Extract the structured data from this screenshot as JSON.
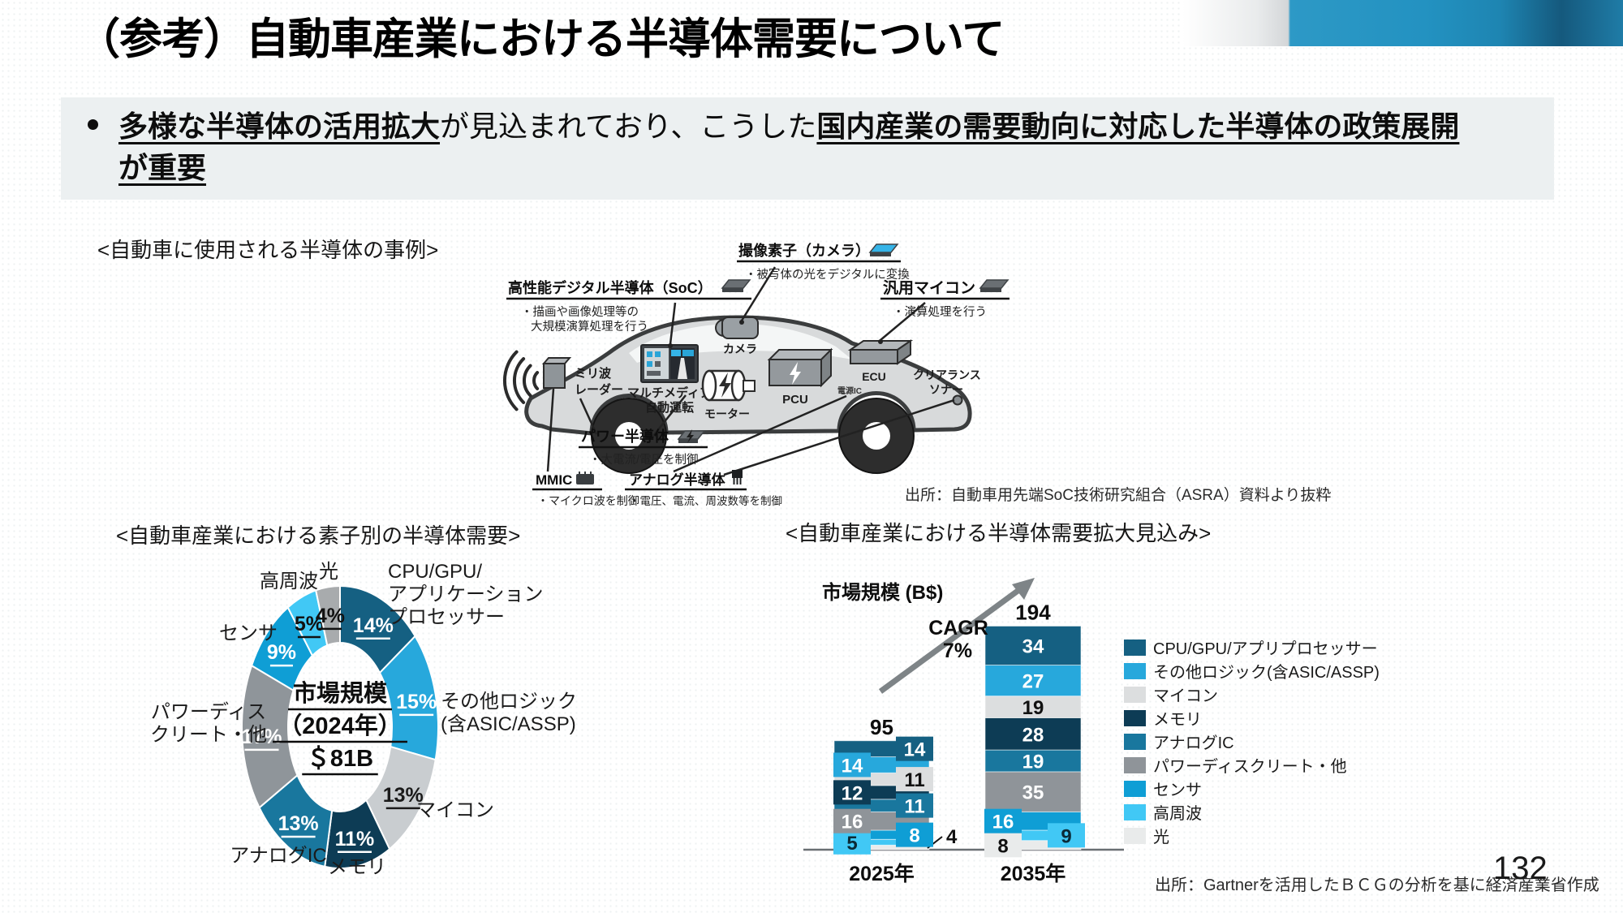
{
  "page": {
    "title": "（参考）自動車産業における半導体需要について",
    "page_number": "132"
  },
  "key_message": {
    "emph1": "多様な半導体の活用拡大",
    "normal1": "が見込まれており、こうした",
    "emph2": "国内産業の需要動向に対応した半導体の政策展開",
    "emph3": "が重要"
  },
  "sections": {
    "car_example": "<自動車に使用される半導体の事例>",
    "donut": "<自動車産業における素子別の半導体需要>",
    "bar": "<自動車産業における半導体需要拡大見込み>"
  },
  "car_diagram": {
    "callouts": {
      "soc": {
        "title": "高性能デジタル半導体（SoC）",
        "desc1": "・描画や画像処理等の",
        "desc2": "大規模演算処理を行う"
      },
      "image_sensor": {
        "title": "撮像素子（カメラ）",
        "desc": "・被写体の光をデジタルに変換"
      },
      "mcu": {
        "title": "汎用マイコン",
        "desc": "・演算処理を行う"
      },
      "power": {
        "title": "パワー半導体",
        "desc": "・大電流/電圧を制御"
      },
      "mmic": {
        "title": "MMIC",
        "desc": "・マイクロ波を制御"
      },
      "analog": {
        "title": "アナログ半導体",
        "desc": "・電圧、電流、周波数等を制御"
      }
    },
    "parts": {
      "radar1": "ミリ波",
      "radar2": "レーダー",
      "multimedia1": "マルチメディア",
      "multimedia2": "自動運転",
      "camera": "カメラ",
      "motor": "モーター",
      "pcu": "PCU",
      "ecu": "ECU",
      "power_ic": "電源IC",
      "sonar1": "クリアランス",
      "sonar2": "ソナー"
    },
    "source": "出所：自動車用先端SoC技術研究組合（ASRA）資料より抜粋"
  },
  "chart_data": [
    {
      "type": "pie",
      "subtype": "donut",
      "title": "<自動車産業における素子別の半導体需要>",
      "center_label": [
        "市場規模",
        "（2024年）",
        "＄81B"
      ],
      "slices": [
        {
          "name_lines": [
            "CPU/GPU/",
            "アプリケーション",
            "プロセッサー"
          ],
          "value_pct": 14,
          "color": "#156082",
          "pct_color": "#ffffff"
        },
        {
          "name_lines": [
            "その他ロジック",
            "(含ASIC/ASSP)"
          ],
          "value_pct": 15,
          "color": "#27a8dc",
          "pct_color": "#ffffff"
        },
        {
          "name_lines": [
            "マイコン"
          ],
          "value_pct": 13,
          "color": "#c9cdd0",
          "pct_color": "#1a1a1a"
        },
        {
          "name_lines": [
            "メモリ"
          ],
          "value_pct": 11,
          "color": "#0d3c55",
          "pct_color": "#ffffff"
        },
        {
          "name_lines": [
            "アナログIC"
          ],
          "value_pct": 13,
          "color": "#19779e",
          "pct_color": "#ffffff"
        },
        {
          "name_lines": [
            "パワーディス",
            "クリート・他"
          ],
          "value_pct": 17,
          "color": "#8f959a",
          "pct_color": "#ffffff"
        },
        {
          "name_lines": [
            "センサ"
          ],
          "value_pct": 9,
          "color": "#0f9ed5",
          "pct_color": "#ffffff"
        },
        {
          "name_lines": [
            "高周波"
          ],
          "value_pct": 5,
          "color": "#41c8f5",
          "pct_color": "#111111"
        },
        {
          "name_lines": [
            "光"
          ],
          "value_pct": 4,
          "color": "#a8abad",
          "pct_color": "#111111"
        }
      ]
    },
    {
      "type": "bar",
      "stacked": true,
      "title": "市場規模 (B$)",
      "cagr_label": "CAGR",
      "cagr_value": "7%",
      "categories": [
        "2025年",
        "2035年"
      ],
      "totals": [
        95,
        194
      ],
      "series": [
        {
          "name": "光",
          "color": "#e9ebeb",
          "values": [
            4,
            8
          ],
          "label_color": "#111111"
        },
        {
          "name": "高周波",
          "color": "#41c8f5",
          "values": [
            5,
            9
          ],
          "label_color": "#0b2a36"
        },
        {
          "name": "センサ",
          "color": "#0f9ed5",
          "values": [
            8,
            16
          ],
          "label_color": "#ffffff"
        },
        {
          "name": "パワーディスクリート・他",
          "color": "#8f9499",
          "values": [
            16,
            35
          ],
          "label_color": "#ffffff"
        },
        {
          "name": "アナログIC",
          "color": "#19779e",
          "values": [
            11,
            19
          ],
          "label_color": "#ffffff"
        },
        {
          "name": "メモリ",
          "color": "#0d3c55",
          "values": [
            12,
            28
          ],
          "label_color": "#ffffff"
        },
        {
          "name": "マイコン",
          "color": "#dcdedf",
          "values": [
            11,
            19
          ],
          "label_color": "#111111"
        },
        {
          "name": "その他ロジック(含ASIC/ASSP)",
          "color": "#27a8dc",
          "values": [
            14,
            27
          ],
          "label_color": "#ffffff"
        },
        {
          "name": "CPU/GPU/アプリプロセッサー",
          "color": "#156082",
          "values": [
            14,
            34
          ],
          "label_color": "#ffffff"
        }
      ]
    }
  ],
  "legend": {
    "items": [
      {
        "label": "CPU/GPU/アプリプロセッサー",
        "color": "#156082"
      },
      {
        "label": "その他ロジック(含ASIC/ASSP)",
        "color": "#27a8dc"
      },
      {
        "label": "マイコン",
        "color": "#dcdedf"
      },
      {
        "label": "メモリ",
        "color": "#0d3c55"
      },
      {
        "label": "アナログIC",
        "color": "#19779e"
      },
      {
        "label": "パワーディスクリート・他",
        "color": "#8f9499"
      },
      {
        "label": "センサ",
        "color": "#0f9ed5"
      },
      {
        "label": "高周波",
        "color": "#41c8f5"
      },
      {
        "label": "光",
        "color": "#e9ebeb"
      }
    ]
  },
  "footer": {
    "source": "出所：Gartnerを活用したＢＣＧの分析を基に経済産業省作成"
  }
}
